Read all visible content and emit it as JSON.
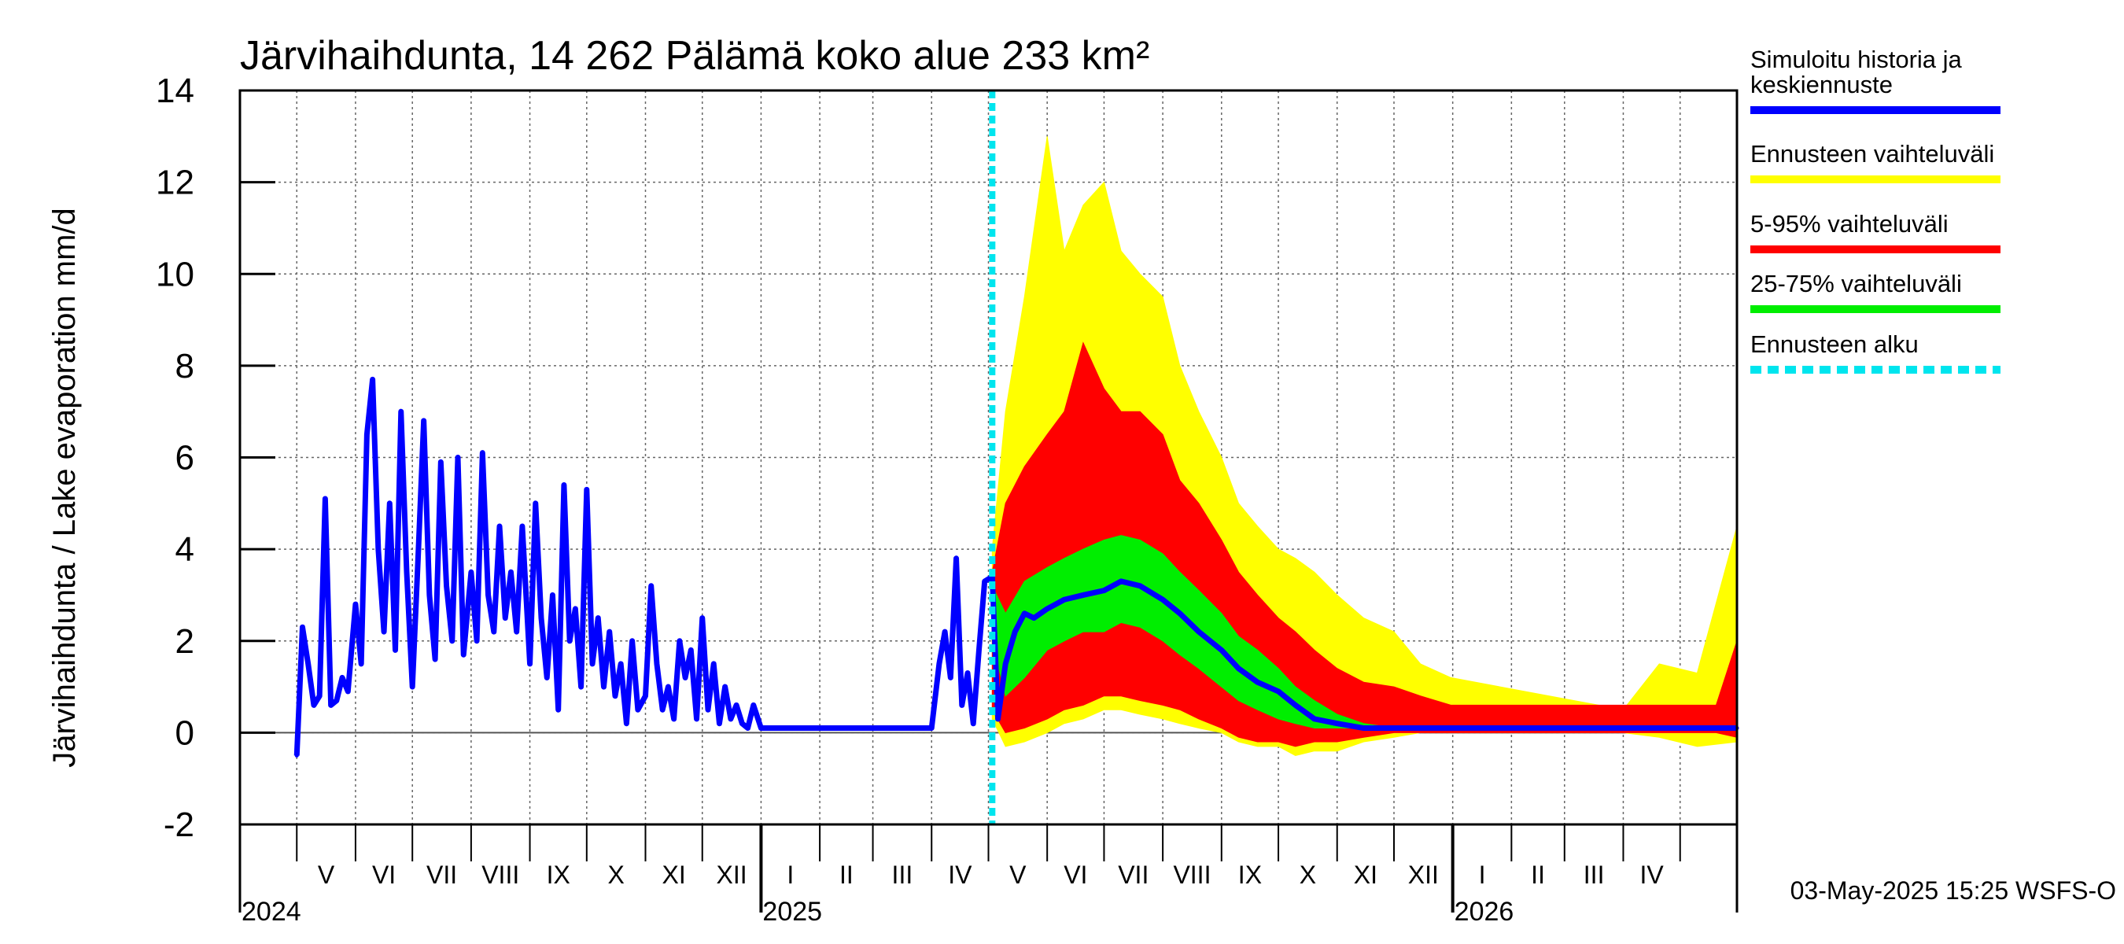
{
  "chart_data": {
    "type": "area",
    "title": "Järvihaihdunta, 14 262 Pälämä koko alue 233 km²",
    "ylabel": "Järvihaihdunta / Lake evaporation   mm/d",
    "xlabel": "",
    "ylim": [
      -2,
      14
    ],
    "yticks": [
      "-2",
      "0",
      "2",
      "4",
      "6",
      "8",
      "10",
      "12",
      "14"
    ],
    "x_range": [
      "2024-04-01",
      "2026-05-31"
    ],
    "forecast_start": "2025-05-03",
    "grid": true,
    "legend_position": "right",
    "month_labels": [
      {
        "label": "V",
        "date": "2024-05-01"
      },
      {
        "label": "VI",
        "date": "2024-06-01"
      },
      {
        "label": "VII",
        "date": "2024-07-01"
      },
      {
        "label": "VIII",
        "date": "2024-08-01"
      },
      {
        "label": "IX",
        "date": "2024-09-01"
      },
      {
        "label": "X",
        "date": "2024-10-01"
      },
      {
        "label": "XI",
        "date": "2024-11-01"
      },
      {
        "label": "XII",
        "date": "2024-12-01"
      },
      {
        "label": "I",
        "date": "2025-01-01"
      },
      {
        "label": "II",
        "date": "2025-02-01"
      },
      {
        "label": "III",
        "date": "2025-03-01"
      },
      {
        "label": "IV",
        "date": "2025-04-01"
      },
      {
        "label": "V",
        "date": "2025-05-01"
      },
      {
        "label": "VI",
        "date": "2025-06-01"
      },
      {
        "label": "VII",
        "date": "2025-07-01"
      },
      {
        "label": "VIII",
        "date": "2025-08-01"
      },
      {
        "label": "IX",
        "date": "2025-09-01"
      },
      {
        "label": "X",
        "date": "2025-10-01"
      },
      {
        "label": "XI",
        "date": "2025-11-01"
      },
      {
        "label": "XII",
        "date": "2025-12-01"
      },
      {
        "label": "I",
        "date": "2026-01-01"
      },
      {
        "label": "II",
        "date": "2026-02-01"
      },
      {
        "label": "III",
        "date": "2026-03-01"
      },
      {
        "label": "IV",
        "date": "2026-04-01"
      }
    ],
    "year_labels": [
      {
        "label": "2024",
        "date": "2024-05-01"
      },
      {
        "label": "2025",
        "date": "2025-01-01"
      },
      {
        "label": "2026",
        "date": "2026-01-01"
      }
    ],
    "series": [
      {
        "name": "Simuloitu historia ja keskiennuste",
        "color": "#0000ff",
        "x": [
          "2024-05-01",
          "2024-05-04",
          "2024-05-07",
          "2024-05-10",
          "2024-05-13",
          "2024-05-16",
          "2024-05-19",
          "2024-05-22",
          "2024-05-25",
          "2024-05-28",
          "2024-06-01",
          "2024-06-04",
          "2024-06-07",
          "2024-06-10",
          "2024-06-13",
          "2024-06-16",
          "2024-06-19",
          "2024-06-22",
          "2024-06-25",
          "2024-06-28",
          "2024-07-01",
          "2024-07-04",
          "2024-07-07",
          "2024-07-10",
          "2024-07-13",
          "2024-07-16",
          "2024-07-19",
          "2024-07-22",
          "2024-07-25",
          "2024-07-28",
          "2024-08-01",
          "2024-08-04",
          "2024-08-07",
          "2024-08-10",
          "2024-08-13",
          "2024-08-16",
          "2024-08-19",
          "2024-08-22",
          "2024-08-25",
          "2024-08-28",
          "2024-09-01",
          "2024-09-04",
          "2024-09-07",
          "2024-09-10",
          "2024-09-13",
          "2024-09-16",
          "2024-09-19",
          "2024-09-22",
          "2024-09-25",
          "2024-09-28",
          "2024-10-01",
          "2024-10-04",
          "2024-10-07",
          "2024-10-10",
          "2024-10-13",
          "2024-10-16",
          "2024-10-19",
          "2024-10-22",
          "2024-10-25",
          "2024-10-28",
          "2024-11-01",
          "2024-11-04",
          "2024-11-07",
          "2024-11-10",
          "2024-11-13",
          "2024-11-16",
          "2024-11-19",
          "2024-11-22",
          "2024-11-25",
          "2024-11-28",
          "2024-12-01",
          "2024-12-04",
          "2024-12-07",
          "2024-12-10",
          "2024-12-13",
          "2024-12-16",
          "2024-12-19",
          "2024-12-22",
          "2024-12-25",
          "2024-12-28",
          "2025-01-01",
          "2025-02-01",
          "2025-03-01",
          "2025-04-01",
          "2025-04-05",
          "2025-04-08",
          "2025-04-11",
          "2025-04-14",
          "2025-04-17",
          "2025-04-20",
          "2025-04-23",
          "2025-04-26",
          "2025-04-29",
          "2025-05-03",
          "2025-05-06",
          "2025-05-10",
          "2025-05-15",
          "2025-05-20",
          "2025-05-25",
          "2025-06-01",
          "2025-06-10",
          "2025-06-20",
          "2025-07-01",
          "2025-07-10",
          "2025-07-20",
          "2025-08-01",
          "2025-08-10",
          "2025-08-20",
          "2025-09-01",
          "2025-09-10",
          "2025-09-20",
          "2025-10-01",
          "2025-10-10",
          "2025-10-20",
          "2025-11-01",
          "2025-11-15",
          "2025-12-01",
          "2026-01-01",
          "2026-02-01",
          "2026-03-01",
          "2026-04-01",
          "2026-05-31"
        ],
        "values": [
          -0.5,
          2.3,
          1.5,
          0.6,
          0.8,
          5.1,
          0.6,
          0.7,
          1.2,
          0.9,
          2.8,
          1.5,
          6.5,
          7.7,
          4.0,
          2.2,
          5.0,
          1.8,
          7.0,
          3.5,
          1.0,
          3.8,
          6.8,
          3.0,
          1.6,
          5.9,
          3.2,
          2.0,
          6.0,
          1.7,
          3.5,
          2.0,
          6.1,
          3.0,
          2.2,
          4.5,
          2.5,
          3.5,
          2.2,
          4.5,
          1.5,
          5.0,
          2.5,
          1.2,
          3.0,
          0.5,
          5.4,
          2.0,
          2.7,
          1.0,
          5.3,
          1.5,
          2.5,
          1.0,
          2.2,
          0.8,
          1.5,
          0.2,
          2.0,
          0.5,
          0.8,
          3.2,
          1.5,
          0.5,
          1.0,
          0.3,
          2.0,
          1.2,
          1.8,
          0.3,
          2.5,
          0.5,
          1.5,
          0.2,
          1.0,
          0.3,
          0.6,
          0.2,
          0.1,
          0.6,
          0.1,
          0.1,
          0.1,
          0.1,
          1.5,
          2.2,
          1.2,
          3.8,
          0.6,
          1.3,
          0.2,
          1.8,
          3.3,
          3.4,
          0.3,
          1.5,
          2.2,
          2.6,
          2.5,
          2.7,
          2.9,
          3.0,
          3.1,
          3.3,
          3.2,
          2.9,
          2.6,
          2.2,
          1.8,
          1.4,
          1.1,
          0.9,
          0.6,
          0.3,
          0.2,
          0.1,
          0.1,
          0.1,
          0.1,
          0.1,
          0.1,
          0.1
        ]
      },
      {
        "name": "Ennusteen vaihteluväli",
        "color": "#ffff00",
        "x": [
          "2025-05-03",
          "2025-05-10",
          "2025-05-20",
          "2025-06-01",
          "2025-06-10",
          "2025-06-20",
          "2025-07-01",
          "2025-07-10",
          "2025-07-20",
          "2025-08-01",
          "2025-08-10",
          "2025-08-20",
          "2025-09-01",
          "2025-09-10",
          "2025-09-20",
          "2025-10-01",
          "2025-10-10",
          "2025-10-20",
          "2025-11-01",
          "2025-11-15",
          "2025-12-01",
          "2025-12-15",
          "2025-12-31",
          "2026-04-01",
          "2026-04-20",
          "2026-05-10",
          "2026-05-31"
        ],
        "low": [
          0.3,
          -0.3,
          -0.2,
          0.0,
          0.2,
          0.3,
          0.5,
          0.5,
          0.4,
          0.3,
          0.2,
          0.1,
          0.0,
          -0.2,
          -0.3,
          -0.3,
          -0.5,
          -0.4,
          -0.4,
          -0.2,
          -0.1,
          0.0,
          0.0,
          0.0,
          -0.1,
          -0.3,
          -0.2
        ],
        "high": [
          4.0,
          7.0,
          9.5,
          13.0,
          10.5,
          11.5,
          12.0,
          10.5,
          10.0,
          9.5,
          8.0,
          7.0,
          6.0,
          5.0,
          4.5,
          4.0,
          3.8,
          3.5,
          3.0,
          2.5,
          2.2,
          1.5,
          1.2,
          0.5,
          1.5,
          1.3,
          4.5
        ]
      },
      {
        "name": "5-95% vaihteluväli",
        "color": "#ff0000",
        "x": [
          "2025-05-03",
          "2025-05-10",
          "2025-05-20",
          "2025-06-01",
          "2025-06-10",
          "2025-06-20",
          "2025-07-01",
          "2025-07-10",
          "2025-07-20",
          "2025-08-01",
          "2025-08-10",
          "2025-08-20",
          "2025-09-01",
          "2025-09-10",
          "2025-09-20",
          "2025-10-01",
          "2025-10-10",
          "2025-10-20",
          "2025-11-01",
          "2025-11-15",
          "2025-12-01",
          "2025-12-15",
          "2025-12-31",
          "2026-05-20",
          "2026-05-31"
        ],
        "low": [
          0.5,
          0.0,
          0.1,
          0.3,
          0.5,
          0.6,
          0.8,
          0.8,
          0.7,
          0.6,
          0.5,
          0.3,
          0.1,
          -0.1,
          -0.2,
          -0.2,
          -0.3,
          -0.2,
          -0.2,
          -0.1,
          0.0,
          0.0,
          0.0,
          0.0,
          -0.1
        ],
        "high": [
          3.5,
          5.0,
          5.8,
          6.5,
          7.0,
          8.5,
          7.5,
          7.0,
          7.0,
          6.5,
          5.5,
          5.0,
          4.2,
          3.5,
          3.0,
          2.5,
          2.2,
          1.8,
          1.4,
          1.1,
          1.0,
          0.8,
          0.6,
          0.6,
          2.0
        ]
      },
      {
        "name": "25-75% vaihteluväli",
        "color": "#00ee00",
        "x": [
          "2025-05-03",
          "2025-05-10",
          "2025-05-20",
          "2025-06-01",
          "2025-06-10",
          "2025-06-20",
          "2025-07-01",
          "2025-07-10",
          "2025-07-20",
          "2025-08-01",
          "2025-08-10",
          "2025-08-20",
          "2025-09-01",
          "2025-09-10",
          "2025-09-20",
          "2025-10-01",
          "2025-10-10",
          "2025-10-20",
          "2025-11-01",
          "2025-11-15",
          "2025-12-01"
        ],
        "low": [
          2.0,
          0.8,
          1.2,
          1.8,
          2.0,
          2.2,
          2.2,
          2.4,
          2.3,
          2.0,
          1.7,
          1.4,
          1.0,
          0.7,
          0.5,
          0.3,
          0.2,
          0.1,
          0.1,
          0.1,
          0.1
        ],
        "high": [
          3.2,
          2.6,
          3.3,
          3.6,
          3.8,
          4.0,
          4.2,
          4.3,
          4.2,
          3.9,
          3.5,
          3.1,
          2.6,
          2.1,
          1.8,
          1.4,
          1.0,
          0.7,
          0.4,
          0.2,
          0.1
        ]
      }
    ],
    "legend": [
      {
        "label": "Simuloitu historia ja keskiennuste",
        "color": "#0000ff",
        "style": "solid"
      },
      {
        "label": "Ennusteen vaihteluväli",
        "color": "#ffff00",
        "style": "solid"
      },
      {
        "label": "5-95% vaihteluväli",
        "color": "#ff0000",
        "style": "solid"
      },
      {
        "label": "25-75% vaihteluväli",
        "color": "#00ee00",
        "style": "solid"
      },
      {
        "label": "Ennusteen alku",
        "color": "#00e5ee",
        "style": "dashed"
      }
    ],
    "footer": "03-May-2025 15:25 WSFS-O"
  }
}
